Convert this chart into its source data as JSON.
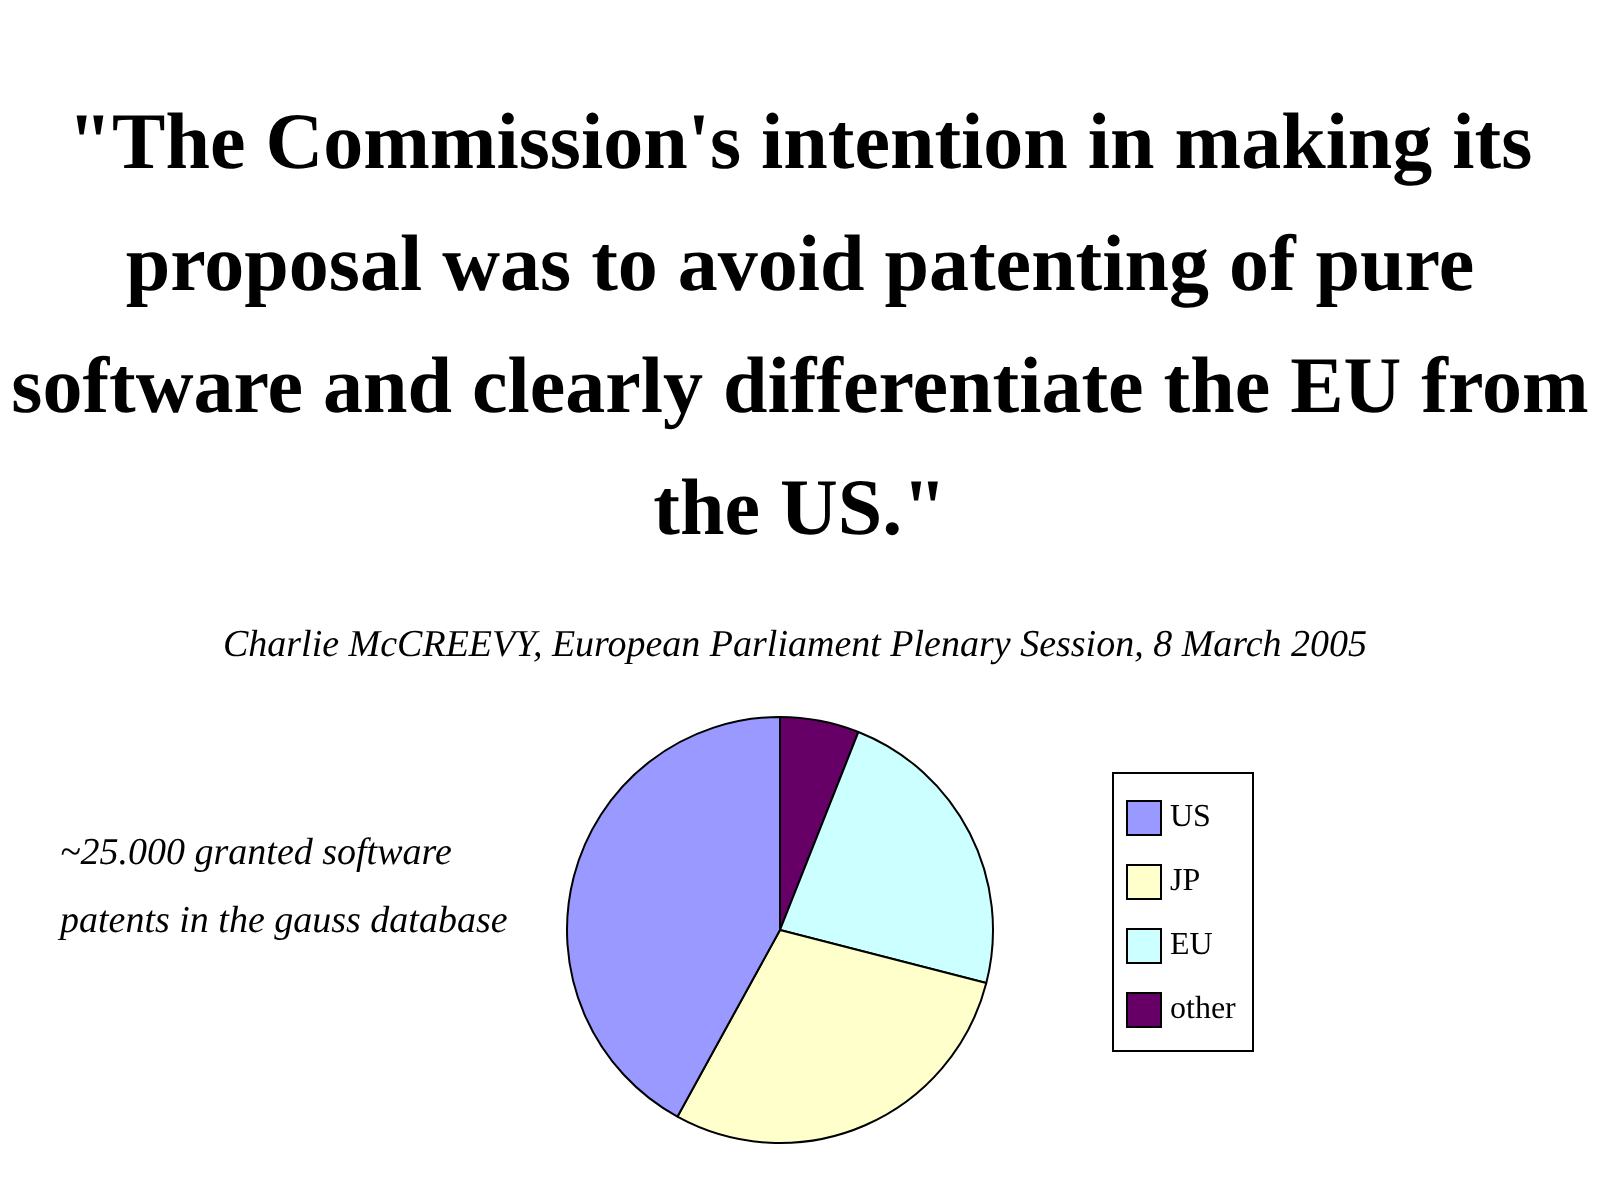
{
  "chart_data": {
    "type": "pie",
    "title": "\"The Commission's intention in making its proposal was to avoid patenting of pure software and clearly differentiate the EU from the US.\"",
    "subtitle": "Charlie McCREEVY, European Parliament Plenary Session, 8 March 2005",
    "annotations": [
      "~25.000 granted software patents in the gauss database"
    ],
    "categories": [
      "US",
      "JP",
      "EU",
      "other"
    ],
    "values": [
      42,
      29,
      23,
      6
    ],
    "colors": [
      "#9999ff",
      "#ffffcc",
      "#ccffff",
      "#660066"
    ],
    "legend": "right"
  }
}
